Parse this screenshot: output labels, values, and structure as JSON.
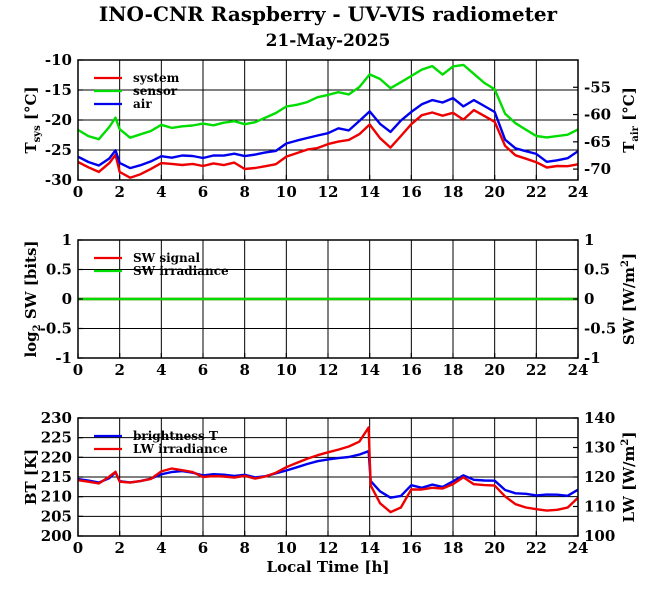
{
  "title": "INO-CNR Raspberry - UV-VIS radiometer",
  "date": "21-May-2025",
  "xlabel": "Local Time [h]",
  "chart_data": [
    {
      "type": "line",
      "id": "temperature",
      "xlim": [
        0,
        24
      ],
      "xticks": [
        0,
        2,
        4,
        6,
        8,
        10,
        12,
        14,
        16,
        18,
        20,
        22,
        24
      ],
      "ylim_left": [
        -30,
        -10
      ],
      "yticks_left": [
        -30,
        -25,
        -20,
        -15,
        -10
      ],
      "ylim_right": [
        -72,
        -50
      ],
      "yticks_right": [
        -70,
        -65,
        -60,
        -55
      ],
      "ylabel_left": "T",
      "ylabel_left_sub": "sys",
      "ylabel_left_unit": " [°C]",
      "ylabel_right": "T",
      "ylabel_right_sub": "air",
      "ylabel_right_unit": " [°C]",
      "grid": true,
      "legend_position": "top-left",
      "x": [
        0,
        0.5,
        1,
        1.5,
        1.8,
        2,
        2.5,
        3,
        3.5,
        4,
        4.5,
        5,
        5.5,
        6,
        6.5,
        7,
        7.5,
        8,
        8.5,
        9,
        9.5,
        10,
        10.5,
        11,
        11.5,
        12,
        12.5,
        13,
        13.5,
        14,
        14.5,
        15,
        15.5,
        16,
        16.5,
        17,
        17.5,
        18,
        18.5,
        19,
        19.5,
        20,
        20.5,
        21,
        21.5,
        22,
        22.5,
        23,
        23.5,
        24
      ],
      "series": [
        {
          "name": "system",
          "axis": "left",
          "color": "#ee0000",
          "values": [
            -27,
            -27.8,
            -28.5,
            -27,
            -25.6,
            -28.5,
            -29.5,
            -29,
            -28.2,
            -27.3,
            -27.5,
            -27.7,
            -27.5,
            -27.8,
            -27.3,
            -27.5,
            -27,
            -28,
            -27.8,
            -27.5,
            -27.2,
            -26,
            -25.5,
            -25,
            -24.8,
            -24.2,
            -23.8,
            -23.5,
            -22.5,
            -20.8,
            -23,
            -24.5,
            -22.5,
            -20.5,
            -19,
            -18.6,
            -19.2,
            -18.8,
            -20,
            -18.5,
            -19.5,
            -20.5,
            -24.5,
            -26,
            -26.5,
            -27,
            -27.8,
            -27.5,
            -27.5,
            -27.2
          ]
        },
        {
          "name": "sensor",
          "axis": "left",
          "color": "#00dd00",
          "values": [
            -21.5,
            -22.5,
            -23,
            -21,
            -19.5,
            -21.5,
            -23,
            -22.5,
            -22,
            -21,
            -21.5,
            -21.2,
            -21,
            -20.6,
            -20.8,
            -20.3,
            -20,
            -20.5,
            -20.2,
            -19.5,
            -18.8,
            -17.8,
            -17.6,
            -17.2,
            -16.4,
            -16,
            -15.5,
            -15.8,
            -14.5,
            -12.3,
            -13,
            -14.5,
            -13.5,
            -12.5,
            -11.5,
            -11,
            -12.5,
            -11.2,
            -11,
            -12.5,
            -14,
            -15,
            -19,
            -20.5,
            -21.5,
            -22.5,
            -22.7,
            -22.5,
            -22.3,
            -21.5
          ]
        },
        {
          "name": "air",
          "axis": "right",
          "color": "#0000ee",
          "values": [
            -67.5,
            -68.5,
            -69.2,
            -68,
            -66.6,
            -69,
            -70,
            -69.5,
            -68.8,
            -67.8,
            -68,
            -67.5,
            -67.5,
            -67.8,
            -67.3,
            -67.3,
            -67,
            -67.5,
            -67.3,
            -67,
            -66.8,
            -65.5,
            -65,
            -64.5,
            -64,
            -63.5,
            -62.5,
            -62.8,
            -61,
            -59.2,
            -61.5,
            -63,
            -61,
            -59.5,
            -58.2,
            -57.5,
            -58,
            -57.2,
            -58.7,
            -57.5,
            -58.5,
            -59.5,
            -64.5,
            -66,
            -66.5,
            -67,
            -68.5,
            -68.3,
            -68,
            -66.8
          ]
        }
      ]
    },
    {
      "type": "line",
      "id": "shortwave",
      "xlim": [
        0,
        24
      ],
      "xticks": [
        0,
        2,
        4,
        6,
        8,
        10,
        12,
        14,
        16,
        18,
        20,
        22,
        24
      ],
      "ylim_left": [
        -1,
        1
      ],
      "yticks_left": [
        -1,
        -0.5,
        0,
        0.5,
        1
      ],
      "ylim_right": [
        -1,
        1
      ],
      "yticks_right": [
        -1,
        -0.5,
        0,
        0.5,
        1
      ],
      "ylabel_left": "log",
      "ylabel_left_sub": "2",
      "ylabel_left_unit": " SW [bits]",
      "ylabel_right": "SW [W/m",
      "ylabel_right_sup": "2",
      "ylabel_right_unit": "]",
      "grid": true,
      "legend_position": "top-left",
      "x": [
        0,
        24
      ],
      "series": [
        {
          "name": "SW signal",
          "axis": "left",
          "color": "#ee0000",
          "values": [
            0,
            0
          ]
        },
        {
          "name": "SW irradiance",
          "axis": "right",
          "color": "#00dd00",
          "values": [
            0,
            0
          ]
        }
      ]
    },
    {
      "type": "line",
      "id": "longwave",
      "xlim": [
        0,
        24
      ],
      "xticks": [
        0,
        2,
        4,
        6,
        8,
        10,
        12,
        14,
        16,
        18,
        20,
        22,
        24
      ],
      "ylim_left": [
        200,
        230
      ],
      "yticks_left": [
        200,
        205,
        210,
        215,
        220,
        225,
        230
      ],
      "ylim_right": [
        100,
        140
      ],
      "yticks_right": [
        100,
        110,
        120,
        130,
        140
      ],
      "ylabel_left": "BT [K]",
      "ylabel_right": "LW [W/m",
      "ylabel_right_sup": "2",
      "ylabel_right_unit": "]",
      "grid": true,
      "legend_position": "top-left",
      "x": [
        0,
        0.5,
        1,
        1.5,
        1.8,
        2,
        2.5,
        3,
        3.5,
        4,
        4.5,
        5,
        5.5,
        6,
        6.5,
        7,
        7.5,
        8,
        8.5,
        9,
        9.5,
        10,
        10.5,
        11,
        11.5,
        12,
        12.5,
        13,
        13.5,
        13.95,
        14.05,
        14.5,
        15,
        15.5,
        16,
        16.5,
        17,
        17.5,
        18,
        18.5,
        19,
        19.5,
        20,
        20.5,
        21,
        21.5,
        22,
        22.5,
        23,
        23.5,
        24
      ],
      "series": [
        {
          "name": "brightness T",
          "axis": "left",
          "color": "#0000ee",
          "values": [
            214.5,
            214.2,
            213.8,
            215,
            216.5,
            214.2,
            213.8,
            214,
            214.5,
            215.5,
            216,
            216.2,
            215.8,
            215.2,
            215.6,
            215.6,
            215.4,
            215.8,
            215.2,
            215.5,
            216.2,
            216.8,
            217.5,
            218.2,
            218.8,
            219.2,
            219.5,
            219.8,
            220.5,
            221.5,
            214,
            211.5,
            210,
            210.5,
            213.2,
            212.5,
            213.2,
            212.5,
            213.8,
            215.2,
            214,
            213.8,
            213.8,
            211.5,
            210.8,
            210.8,
            210.5,
            210.8,
            210.8,
            210.5,
            212
          ]
        },
        {
          "name": "LW irradiance",
          "axis": "right",
          "color": "#ee0000",
          "values": [
            119.2,
            118.8,
            118.2,
            120.5,
            122,
            118.5,
            118,
            118.4,
            119,
            121.5,
            122.5,
            122,
            121.5,
            120,
            120.5,
            120.5,
            120.2,
            120.8,
            119.8,
            120.4,
            121.5,
            123.2,
            124.5,
            125.8,
            127,
            128,
            129,
            130.2,
            132,
            137,
            117.5,
            111.5,
            108.5,
            110,
            116,
            115.8,
            116.2,
            115.8,
            117.2,
            119.5,
            117.2,
            117,
            117,
            113.5,
            111,
            110,
            109.5,
            109,
            109.2,
            109.8,
            113
          ]
        }
      ]
    }
  ]
}
